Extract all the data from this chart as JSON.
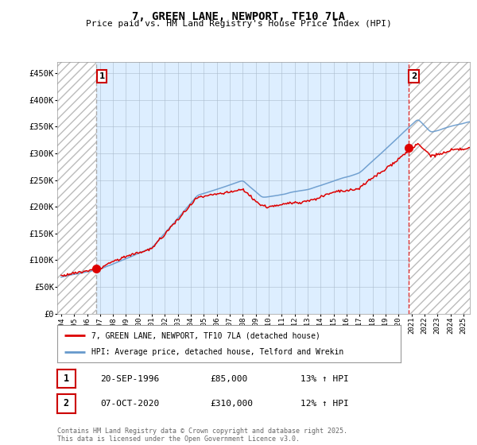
{
  "title": "7, GREEN LANE, NEWPORT, TF10 7LA",
  "subtitle": "Price paid vs. HM Land Registry's House Price Index (HPI)",
  "ylim": [
    0,
    470000
  ],
  "yticks": [
    0,
    50000,
    100000,
    150000,
    200000,
    250000,
    300000,
    350000,
    400000,
    450000
  ],
  "ytick_labels": [
    "£0",
    "£50K",
    "£100K",
    "£150K",
    "£200K",
    "£250K",
    "£300K",
    "£350K",
    "£400K",
    "£450K"
  ],
  "x_start_year": 1994,
  "x_end_year": 2025,
  "sale1_year": 1996.72,
  "sale1_price": 85000,
  "sale1_label": "1",
  "sale2_year": 2020.77,
  "sale2_price": 310000,
  "sale2_label": "2",
  "red_line_color": "#dd0000",
  "blue_line_color": "#6699cc",
  "sale1_vline_color": "#aaaaaa",
  "sale2_vline_color": "#dd3333",
  "chart_bg_color": "#ddeeff",
  "background_color": "#ffffff",
  "grid_color": "#aabbcc",
  "legend1_label": "7, GREEN LANE, NEWPORT, TF10 7LA (detached house)",
  "legend2_label": "HPI: Average price, detached house, Telford and Wrekin",
  "annotation1_date": "20-SEP-1996",
  "annotation1_price": "£85,000",
  "annotation1_hpi": "13% ↑ HPI",
  "annotation2_date": "07-OCT-2020",
  "annotation2_price": "£310,000",
  "annotation2_hpi": "12% ↑ HPI",
  "footer": "Contains HM Land Registry data © Crown copyright and database right 2025.\nThis data is licensed under the Open Government Licence v3.0."
}
